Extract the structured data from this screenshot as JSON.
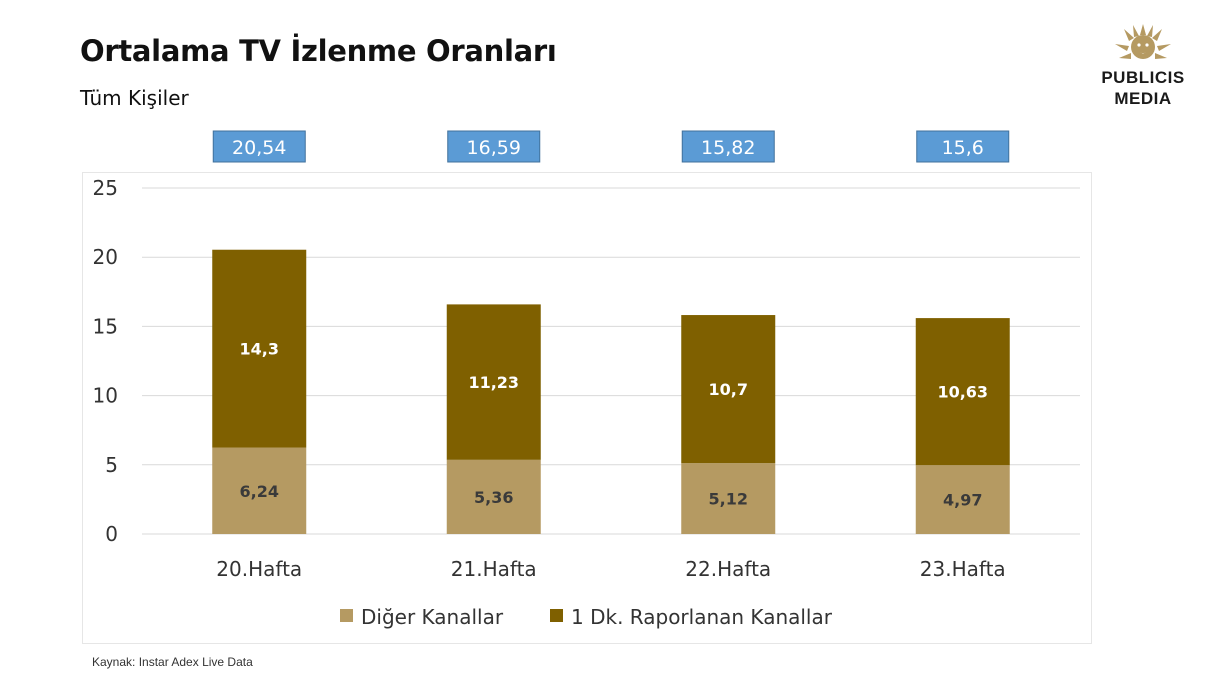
{
  "header": {
    "title": "Ortalama TV İzlenme Oranları",
    "subtitle": "Tüm Kişiler"
  },
  "logo": {
    "line1": "PUBLICIS",
    "line2": "MEDIA",
    "icon": "lion-head-icon"
  },
  "footer": {
    "source": "Kaynak: Instar  Adex Live Data"
  },
  "colors": {
    "total_box": "#5B9BD5",
    "series_bottom": "#B59A62",
    "series_top": "#7F6000",
    "gridline": "#d9d9d9"
  },
  "chart_data": {
    "type": "bar",
    "stacked": true,
    "categories": [
      "20.Hafta",
      "21.Hafta",
      "22.Hafta",
      "23.Hafta"
    ],
    "series": [
      {
        "name": "Diğer Kanallar",
        "values": [
          6.24,
          5.36,
          5.12,
          4.97
        ],
        "labels": [
          "6,24",
          "5,36",
          "5,12",
          "4,97"
        ]
      },
      {
        "name": "1 Dk. Raporlanan Kanallar",
        "values": [
          14.3,
          11.23,
          10.7,
          10.63
        ],
        "labels": [
          "14,3",
          "11,23",
          "10,7",
          "10,63"
        ]
      }
    ],
    "totals": [
      20.54,
      16.59,
      15.82,
      15.6
    ],
    "total_labels": [
      "20,54",
      "16,59",
      "15,82",
      "15,6"
    ],
    "ylim": [
      0,
      25
    ],
    "yticks": [
      "0",
      "5",
      "10",
      "15",
      "20",
      "25"
    ],
    "grid": true,
    "legend_position": "bottom"
  }
}
